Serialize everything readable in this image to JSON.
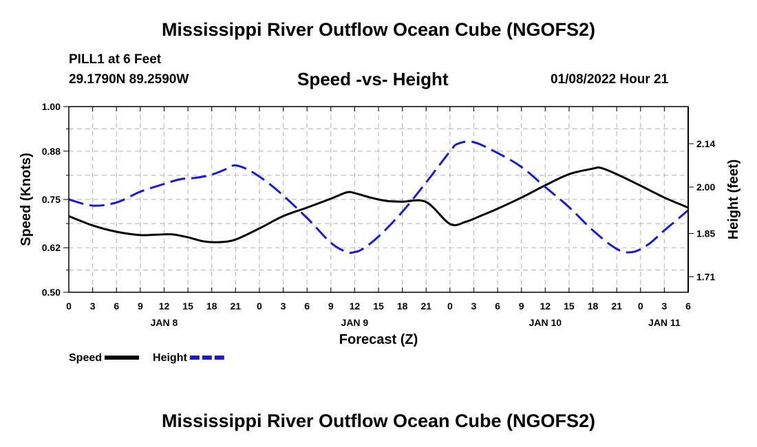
{
  "header": {
    "title": "Mississippi River Outflow Ocean Cube (NGOFS2)",
    "station": "PILL1 at 6 Feet",
    "coords": "29.1790N  89.2590W",
    "subtitle": "Speed -vs- Height",
    "datetime": "01/08/2022 Hour 21"
  },
  "footer": {
    "title": "Mississippi River Outflow Ocean Cube (NGOFS2)"
  },
  "chart_data": {
    "type": "line",
    "title": "Speed -vs- Height",
    "xlabel": "Forecast (Z)",
    "ylabel": "Speed (Knots)",
    "y2label": "Height (feet)",
    "x_unit": "hours since JAN 8 00Z",
    "xlim": [
      0,
      78
    ],
    "x_ticks": [
      0,
      3,
      6,
      9,
      12,
      15,
      18,
      21,
      24,
      27,
      30,
      33,
      36,
      39,
      42,
      45,
      48,
      51,
      54,
      57,
      60,
      63,
      66,
      69,
      72,
      75,
      78
    ],
    "x_tick_labels": [
      "0",
      "3",
      "6",
      "9",
      "12",
      "15",
      "18",
      "21",
      "0",
      "3",
      "6",
      "9",
      "12",
      "15",
      "18",
      "21",
      "0",
      "3",
      "6",
      "9",
      "12",
      "15",
      "18",
      "21",
      "0",
      "3",
      "6"
    ],
    "date_labels": [
      {
        "x": 12,
        "label": "JAN 8"
      },
      {
        "x": 36,
        "label": "JAN 9"
      },
      {
        "x": 60,
        "label": "JAN 10"
      },
      {
        "x": 75,
        "label": "JAN 11"
      }
    ],
    "ylim": [
      0.5,
      1.0
    ],
    "y_ticks": [
      0.5,
      0.62,
      0.75,
      0.88,
      1.0
    ],
    "y_tick_labels": [
      "0.50",
      "0.62",
      "0.75",
      "0.88",
      "1.00"
    ],
    "y2lim": [
      1.66,
      2.26
    ],
    "y2_ticks": [
      1.71,
      1.85,
      2.0,
      2.14
    ],
    "y2_tick_labels": [
      "1.71",
      "1.85",
      "2.00",
      "2.14"
    ],
    "grid": true,
    "legend_position": "bottom-left",
    "series": [
      {
        "name": "Speed",
        "axis": "left",
        "color": "#000000",
        "dash": "solid",
        "x": [
          0,
          3,
          6,
          9,
          11,
          13,
          15,
          17,
          19,
          21,
          24,
          27,
          30,
          33,
          35,
          36,
          38,
          40,
          42,
          45,
          48,
          50,
          52,
          54,
          57,
          60,
          63,
          66,
          67,
          69,
          72,
          75,
          78
        ],
        "values": [
          0.705,
          0.68,
          0.663,
          0.654,
          0.655,
          0.656,
          0.648,
          0.637,
          0.635,
          0.642,
          0.672,
          0.705,
          0.728,
          0.752,
          0.769,
          0.767,
          0.755,
          0.746,
          0.744,
          0.743,
          0.684,
          0.69,
          0.707,
          0.725,
          0.755,
          0.788,
          0.818,
          0.833,
          0.835,
          0.818,
          0.787,
          0.755,
          0.728
        ]
      },
      {
        "name": "Height",
        "axis": "right",
        "color": "#1a1ad6",
        "dash": "dashed",
        "x": [
          0,
          3,
          6,
          9,
          12,
          14,
          16,
          18,
          20,
          21,
          23,
          26,
          30,
          33,
          35,
          36,
          37,
          39,
          42,
          45,
          48,
          49,
          51,
          54,
          57,
          60,
          63,
          66,
          69,
          71,
          73,
          75,
          78
        ],
        "values": [
          1.96,
          1.94,
          1.95,
          1.985,
          2.01,
          2.025,
          2.03,
          2.04,
          2.06,
          2.07,
          2.05,
          1.995,
          1.9,
          1.82,
          1.79,
          1.79,
          1.8,
          1.84,
          1.92,
          2.015,
          2.115,
          2.14,
          2.145,
          2.11,
          2.065,
          2.0,
          1.935,
          1.86,
          1.8,
          1.79,
          1.815,
          1.86,
          1.925
        ]
      }
    ]
  }
}
